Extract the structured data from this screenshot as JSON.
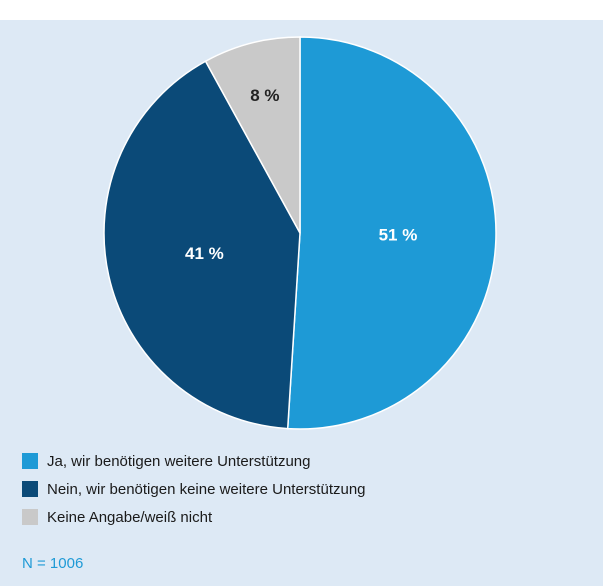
{
  "chart_data": {
    "type": "pie",
    "categories": [
      "Ja, wir benötigen weitere Unterstützung",
      "Nein, wir benötigen keine weitere Unterstützung",
      "Keine Angabe/weiß nicht"
    ],
    "values": [
      51,
      41,
      8
    ],
    "value_labels": [
      "51 %",
      "41 %",
      "8 %"
    ],
    "colors": [
      "#1e9ad6",
      "#0b4a78",
      "#c9c9c9"
    ],
    "label_colors": [
      "#ffffff",
      "#ffffff",
      "#222222"
    ],
    "note": "N = 1006"
  }
}
